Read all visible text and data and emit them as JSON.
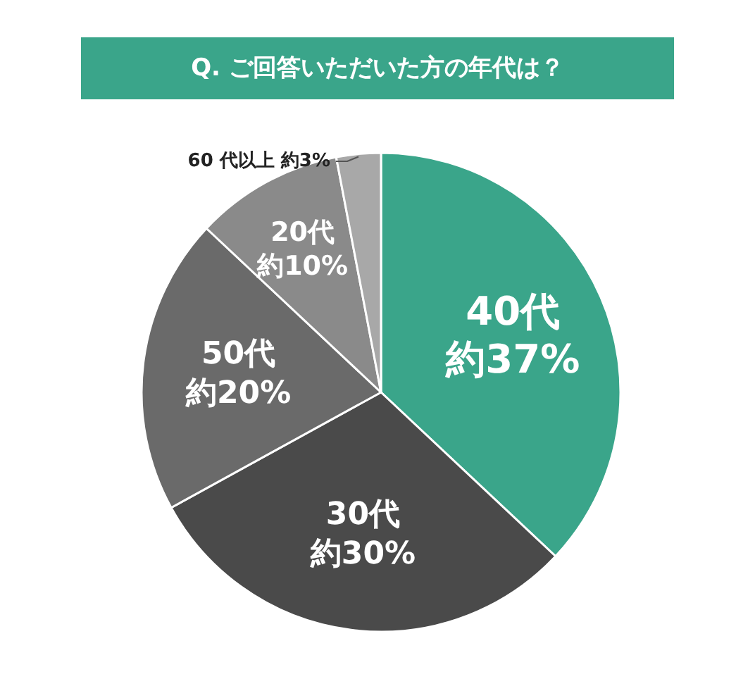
{
  "chart_data": {
    "type": "pie",
    "title": "Q. ご回答いただいた方の年代は？",
    "categories": [
      "40代",
      "30代",
      "50代",
      "20代",
      "60 代以上"
    ],
    "values": [
      37,
      30,
      20,
      10,
      3
    ],
    "value_labels": [
      "約37%",
      "約30%",
      "約20%",
      "約10%",
      "約3%"
    ],
    "colors": [
      "#3aa58a",
      "#4a4a4a",
      "#6a6a6a",
      "#8a8a8a",
      "#a8a8a8"
    ]
  }
}
